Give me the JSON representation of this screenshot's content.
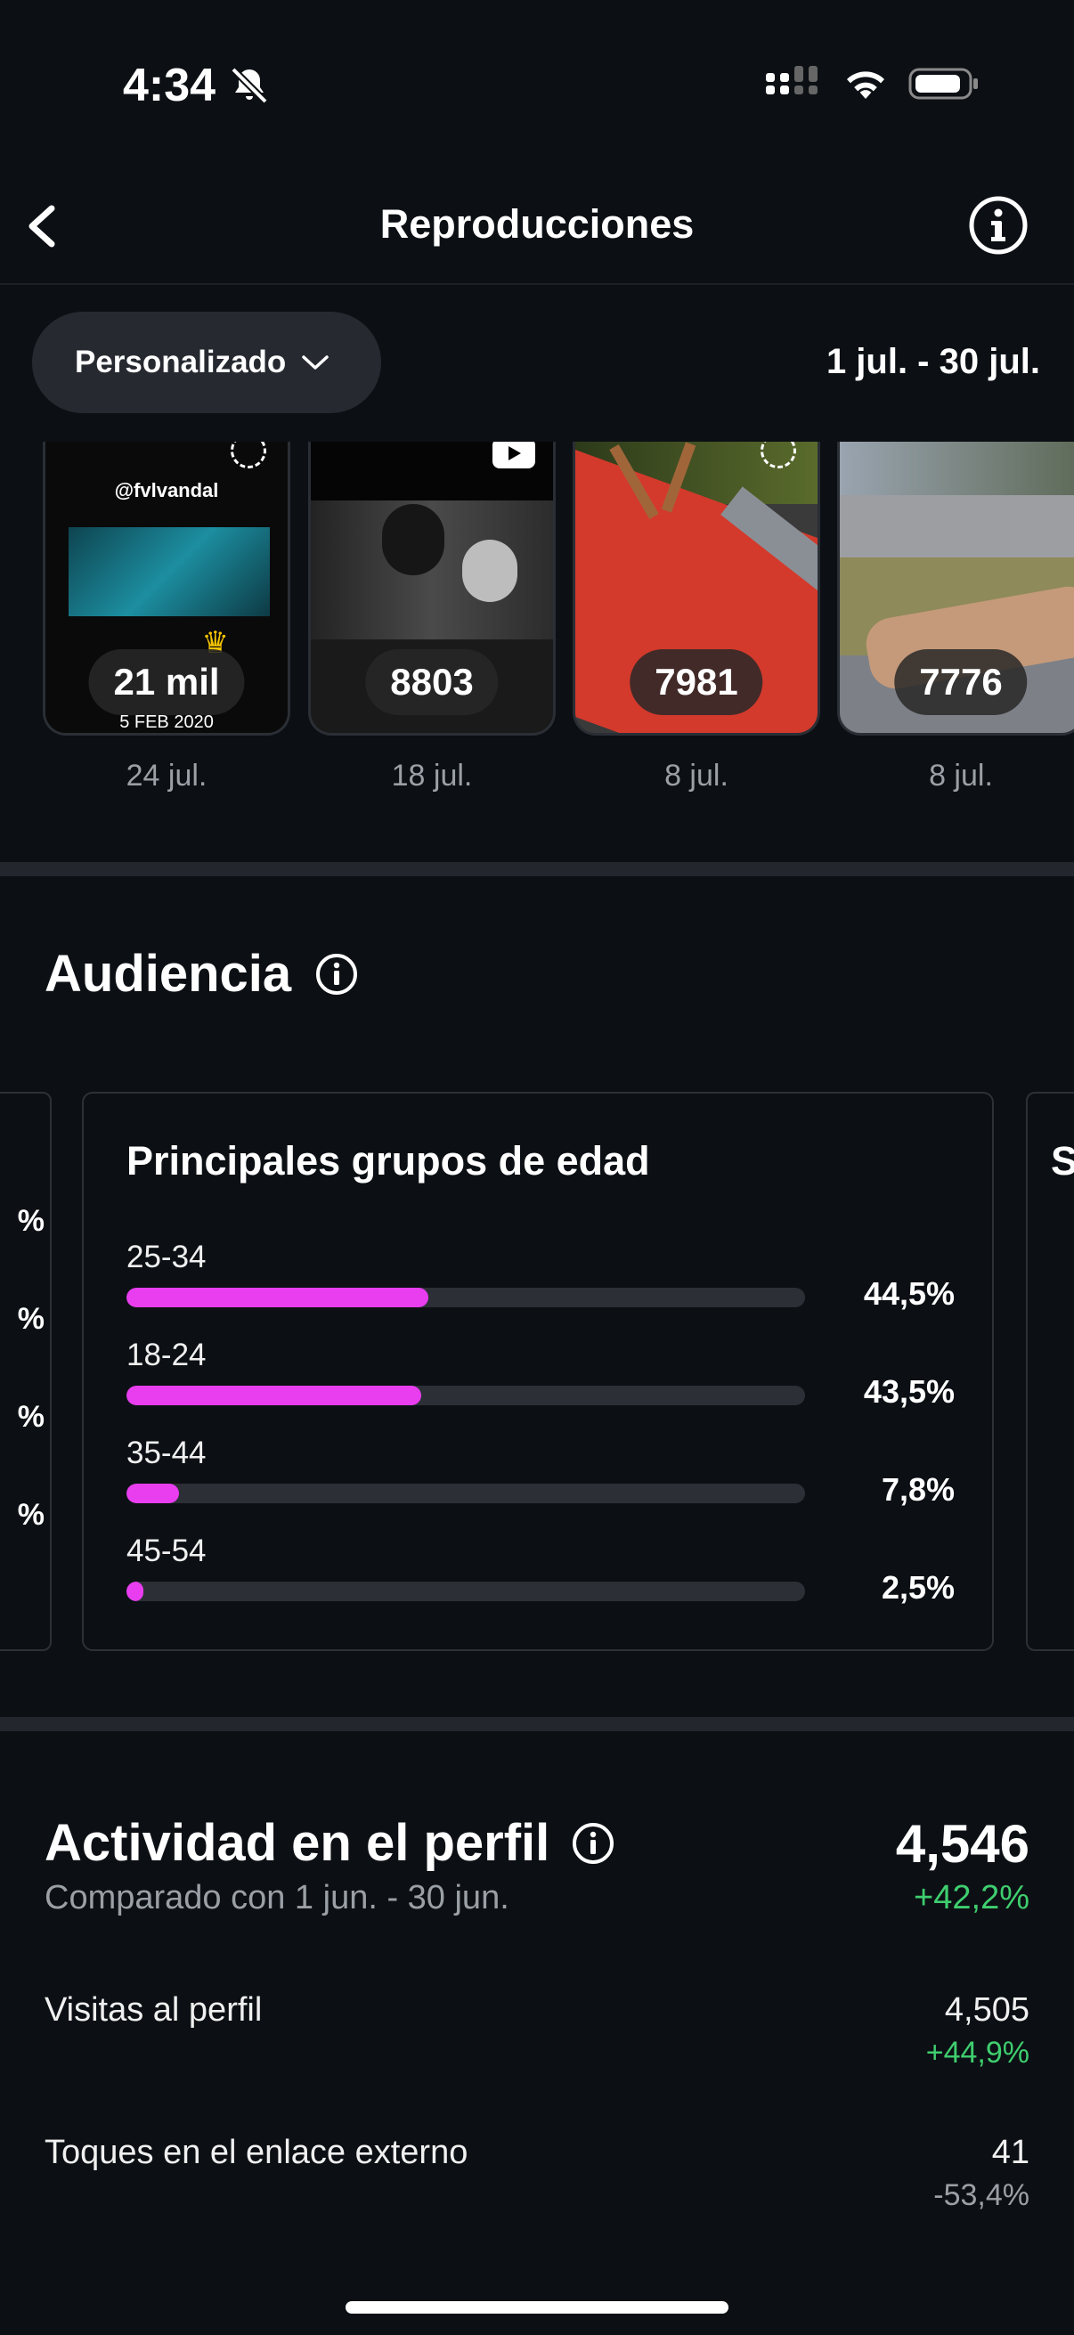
{
  "status_bar": {
    "time": "4:34"
  },
  "header": {
    "title": "Reproducciones"
  },
  "filter": {
    "label": "Personalizado",
    "date_range": "1 jul. - 30 jul."
  },
  "thumbnails": [
    {
      "count": "21 mil",
      "date": "24 jul.",
      "overlay_text": "@fvlvandal",
      "caption_text": "5 FEB 2020"
    },
    {
      "count": "8803",
      "date": "18 jul."
    },
    {
      "count": "7981",
      "date": "8 jul."
    },
    {
      "count": "7776",
      "date": "8 jul."
    }
  ],
  "audience": {
    "title": "Audiencia",
    "age_card": {
      "title": "Principales grupos de edad",
      "accent_color": "#e93df0",
      "groups": [
        {
          "label": "25-34",
          "value": 44.5,
          "pct": "44,5%"
        },
        {
          "label": "18-24",
          "value": 43.5,
          "pct": "43,5%"
        },
        {
          "label": "35-44",
          "value": 7.8,
          "pct": "7,8%"
        },
        {
          "label": "45-54",
          "value": 2.5,
          "pct": "2,5%"
        }
      ]
    }
  },
  "activity": {
    "title": "Actividad en el perfil",
    "total": "4,546",
    "compare": "Comparado con 1 jun. - 30 jun.",
    "change": "+42,2%",
    "metrics": [
      {
        "label": "Visitas al perfil",
        "value": "4,505",
        "change": "+44,9%",
        "color": "#3fce6f"
      },
      {
        "label": "Toques en el enlace externo",
        "value": "41",
        "change": "-53,4%",
        "color": "#9aa0a6"
      }
    ]
  }
}
